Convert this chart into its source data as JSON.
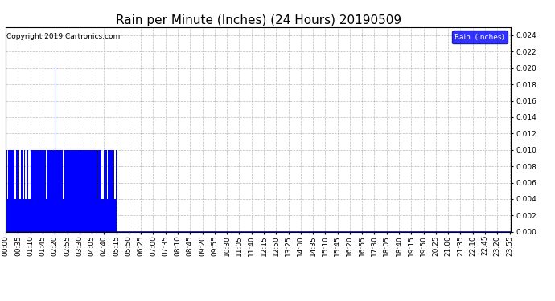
{
  "title": "Rain per Minute (Inches) (24 Hours) 20190509",
  "copyright": "Copyright 2019 Cartronics.com",
  "legend_label": "Rain  (Inches)",
  "legend_bg": "#0000FF",
  "legend_text_color": "#FFFFFF",
  "bar_color": "#0000FF",
  "line_color": "#0000BB",
  "background_color": "#FFFFFF",
  "grid_color": "#AAAAAA",
  "ylim": [
    0,
    0.025
  ],
  "yticks": [
    0.0,
    0.002,
    0.004,
    0.006,
    0.008,
    0.01,
    0.012,
    0.014,
    0.016,
    0.018,
    0.02,
    0.022,
    0.024
  ],
  "title_fontsize": 11,
  "tick_fontsize": 6.5,
  "total_minutes": 1440,
  "tick_interval_minutes": 35,
  "rain_data": [
    [
      0,
      0.01
    ],
    [
      1,
      0.01
    ],
    [
      2,
      0.01
    ],
    [
      3,
      0.01
    ],
    [
      4,
      0.01
    ],
    [
      5,
      0.004
    ],
    [
      6,
      0.01
    ],
    [
      7,
      0.004
    ],
    [
      8,
      0.01
    ],
    [
      9,
      0.004
    ],
    [
      10,
      0.01
    ],
    [
      11,
      0.004
    ],
    [
      12,
      0.01
    ],
    [
      13,
      0.01
    ],
    [
      14,
      0.01
    ],
    [
      15,
      0.01
    ],
    [
      16,
      0.01
    ],
    [
      17,
      0.01
    ],
    [
      18,
      0.01
    ],
    [
      19,
      0.01
    ],
    [
      20,
      0.004
    ],
    [
      21,
      0.01
    ],
    [
      22,
      0.004
    ],
    [
      23,
      0.01
    ],
    [
      24,
      0.01
    ],
    [
      25,
      0.01
    ],
    [
      26,
      0.004
    ],
    [
      27,
      0.01
    ],
    [
      28,
      0.004
    ],
    [
      29,
      0.01
    ],
    [
      30,
      0.01
    ],
    [
      31,
      0.01
    ],
    [
      32,
      0.01
    ],
    [
      33,
      0.01
    ],
    [
      34,
      0.01
    ],
    [
      35,
      0.004
    ],
    [
      36,
      0.01
    ],
    [
      37,
      0.004
    ],
    [
      38,
      0.01
    ],
    [
      39,
      0.01
    ],
    [
      40,
      0.004
    ],
    [
      41,
      0.01
    ],
    [
      42,
      0.004
    ],
    [
      43,
      0.01
    ],
    [
      44,
      0.01
    ],
    [
      45,
      0.01
    ],
    [
      46,
      0.01
    ],
    [
      47,
      0.01
    ],
    [
      48,
      0.01
    ],
    [
      49,
      0.004
    ],
    [
      50,
      0.01
    ],
    [
      51,
      0.004
    ],
    [
      52,
      0.01
    ],
    [
      53,
      0.01
    ],
    [
      54,
      0.01
    ],
    [
      55,
      0.004
    ],
    [
      56,
      0.004
    ],
    [
      57,
      0.004
    ],
    [
      58,
      0.004
    ],
    [
      59,
      0.004
    ],
    [
      60,
      0.01
    ],
    [
      61,
      0.01
    ],
    [
      62,
      0.01
    ],
    [
      63,
      0.01
    ],
    [
      64,
      0.01
    ],
    [
      65,
      0.004
    ],
    [
      66,
      0.01
    ],
    [
      67,
      0.004
    ],
    [
      68,
      0.01
    ],
    [
      69,
      0.01
    ],
    [
      70,
      0.004
    ],
    [
      71,
      0.01
    ],
    [
      72,
      0.01
    ],
    [
      73,
      0.01
    ],
    [
      74,
      0.01
    ],
    [
      75,
      0.01
    ],
    [
      76,
      0.01
    ],
    [
      77,
      0.01
    ],
    [
      78,
      0.01
    ],
    [
      79,
      0.01
    ],
    [
      80,
      0.01
    ],
    [
      81,
      0.01
    ],
    [
      82,
      0.01
    ],
    [
      83,
      0.01
    ],
    [
      84,
      0.01
    ],
    [
      85,
      0.01
    ],
    [
      86,
      0.01
    ],
    [
      87,
      0.01
    ],
    [
      88,
      0.01
    ],
    [
      89,
      0.01
    ],
    [
      90,
      0.01
    ],
    [
      91,
      0.01
    ],
    [
      92,
      0.01
    ],
    [
      93,
      0.01
    ],
    [
      94,
      0.01
    ],
    [
      95,
      0.01
    ],
    [
      96,
      0.01
    ],
    [
      97,
      0.01
    ],
    [
      98,
      0.01
    ],
    [
      99,
      0.01
    ],
    [
      100,
      0.01
    ],
    [
      101,
      0.01
    ],
    [
      102,
      0.01
    ],
    [
      103,
      0.01
    ],
    [
      104,
      0.01
    ],
    [
      105,
      0.01
    ],
    [
      106,
      0.01
    ],
    [
      107,
      0.01
    ],
    [
      108,
      0.01
    ],
    [
      109,
      0.01
    ],
    [
      110,
      0.004
    ],
    [
      111,
      0.01
    ],
    [
      112,
      0.004
    ],
    [
      113,
      0.01
    ],
    [
      114,
      0.01
    ],
    [
      115,
      0.004
    ],
    [
      116,
      0.01
    ],
    [
      117,
      0.004
    ],
    [
      118,
      0.01
    ],
    [
      119,
      0.01
    ],
    [
      120,
      0.01
    ],
    [
      121,
      0.01
    ],
    [
      122,
      0.01
    ],
    [
      123,
      0.01
    ],
    [
      124,
      0.01
    ],
    [
      125,
      0.01
    ],
    [
      126,
      0.01
    ],
    [
      127,
      0.01
    ],
    [
      128,
      0.01
    ],
    [
      129,
      0.01
    ],
    [
      130,
      0.01
    ],
    [
      131,
      0.01
    ],
    [
      132,
      0.01
    ],
    [
      133,
      0.01
    ],
    [
      134,
      0.01
    ],
    [
      135,
      0.01
    ],
    [
      136,
      0.01
    ],
    [
      137,
      0.01
    ],
    [
      138,
      0.01
    ],
    [
      139,
      0.01
    ],
    [
      140,
      0.01
    ],
    [
      141,
      0.02
    ],
    [
      142,
      0.01
    ],
    [
      143,
      0.01
    ],
    [
      144,
      0.01
    ],
    [
      145,
      0.01
    ],
    [
      146,
      0.01
    ],
    [
      147,
      0.01
    ],
    [
      148,
      0.01
    ],
    [
      149,
      0.01
    ],
    [
      150,
      0.01
    ],
    [
      151,
      0.01
    ],
    [
      152,
      0.01
    ],
    [
      153,
      0.01
    ],
    [
      154,
      0.01
    ],
    [
      155,
      0.01
    ],
    [
      156,
      0.01
    ],
    [
      157,
      0.01
    ],
    [
      158,
      0.004
    ],
    [
      159,
      0.01
    ],
    [
      160,
      0.01
    ],
    [
      161,
      0.01
    ],
    [
      162,
      0.01
    ],
    [
      163,
      0.01
    ],
    [
      164,
      0.004
    ],
    [
      165,
      0.01
    ],
    [
      166,
      0.004
    ],
    [
      167,
      0.01
    ],
    [
      168,
      0.01
    ],
    [
      169,
      0.004
    ],
    [
      170,
      0.01
    ],
    [
      171,
      0.004
    ],
    [
      172,
      0.01
    ],
    [
      173,
      0.01
    ],
    [
      174,
      0.004
    ],
    [
      175,
      0.01
    ],
    [
      176,
      0.004
    ],
    [
      177,
      0.01
    ],
    [
      178,
      0.01
    ],
    [
      179,
      0.004
    ],
    [
      180,
      0.01
    ],
    [
      181,
      0.01
    ],
    [
      182,
      0.01
    ],
    [
      183,
      0.01
    ],
    [
      184,
      0.01
    ],
    [
      185,
      0.01
    ],
    [
      186,
      0.01
    ],
    [
      187,
      0.01
    ],
    [
      188,
      0.01
    ],
    [
      189,
      0.01
    ],
    [
      190,
      0.004
    ],
    [
      191,
      0.01
    ],
    [
      192,
      0.004
    ],
    [
      193,
      0.01
    ],
    [
      194,
      0.01
    ],
    [
      195,
      0.01
    ],
    [
      196,
      0.01
    ],
    [
      197,
      0.01
    ],
    [
      198,
      0.01
    ],
    [
      199,
      0.01
    ],
    [
      200,
      0.01
    ],
    [
      201,
      0.01
    ],
    [
      202,
      0.01
    ],
    [
      203,
      0.01
    ],
    [
      204,
      0.01
    ],
    [
      205,
      0.01
    ],
    [
      206,
      0.01
    ],
    [
      207,
      0.01
    ],
    [
      208,
      0.004
    ],
    [
      209,
      0.01
    ],
    [
      210,
      0.004
    ],
    [
      211,
      0.01
    ],
    [
      212,
      0.01
    ],
    [
      213,
      0.01
    ],
    [
      214,
      0.01
    ],
    [
      215,
      0.01
    ],
    [
      216,
      0.01
    ],
    [
      217,
      0.01
    ],
    [
      218,
      0.004
    ],
    [
      219,
      0.01
    ],
    [
      220,
      0.01
    ],
    [
      221,
      0.01
    ],
    [
      222,
      0.01
    ],
    [
      223,
      0.01
    ],
    [
      224,
      0.01
    ],
    [
      225,
      0.01
    ],
    [
      226,
      0.01
    ],
    [
      227,
      0.01
    ],
    [
      228,
      0.01
    ],
    [
      229,
      0.01
    ],
    [
      230,
      0.01
    ],
    [
      231,
      0.01
    ],
    [
      232,
      0.01
    ],
    [
      233,
      0.01
    ],
    [
      234,
      0.01
    ],
    [
      235,
      0.01
    ],
    [
      236,
      0.01
    ],
    [
      237,
      0.01
    ],
    [
      238,
      0.01
    ],
    [
      239,
      0.01
    ],
    [
      240,
      0.01
    ],
    [
      241,
      0.01
    ],
    [
      242,
      0.01
    ],
    [
      243,
      0.01
    ],
    [
      244,
      0.01
    ],
    [
      245,
      0.01
    ],
    [
      246,
      0.01
    ],
    [
      247,
      0.01
    ],
    [
      248,
      0.01
    ],
    [
      249,
      0.01
    ],
    [
      250,
      0.01
    ],
    [
      251,
      0.01
    ],
    [
      252,
      0.01
    ],
    [
      253,
      0.01
    ],
    [
      254,
      0.004
    ],
    [
      255,
      0.01
    ],
    [
      256,
      0.004
    ],
    [
      257,
      0.01
    ],
    [
      258,
      0.01
    ],
    [
      259,
      0.01
    ],
    [
      260,
      0.004
    ],
    [
      261,
      0.01
    ],
    [
      262,
      0.01
    ],
    [
      263,
      0.004
    ],
    [
      264,
      0.01
    ],
    [
      265,
      0.01
    ],
    [
      266,
      0.004
    ],
    [
      267,
      0.01
    ],
    [
      268,
      0.01
    ],
    [
      269,
      0.01
    ],
    [
      270,
      0.01
    ],
    [
      271,
      0.01
    ],
    [
      272,
      0.01
    ],
    [
      273,
      0.004
    ],
    [
      274,
      0.01
    ],
    [
      275,
      0.01
    ],
    [
      276,
      0.004
    ],
    [
      277,
      0.004
    ],
    [
      278,
      0.004
    ],
    [
      279,
      0.004
    ],
    [
      280,
      0.01
    ],
    [
      281,
      0.01
    ],
    [
      282,
      0.01
    ],
    [
      283,
      0.01
    ],
    [
      284,
      0.01
    ],
    [
      285,
      0.01
    ],
    [
      286,
      0.01
    ],
    [
      287,
      0.01
    ],
    [
      288,
      0.004
    ],
    [
      289,
      0.01
    ],
    [
      290,
      0.004
    ],
    [
      291,
      0.01
    ],
    [
      292,
      0.01
    ],
    [
      293,
      0.01
    ],
    [
      294,
      0.01
    ],
    [
      295,
      0.01
    ],
    [
      296,
      0.01
    ],
    [
      297,
      0.004
    ],
    [
      298,
      0.01
    ],
    [
      299,
      0.01
    ],
    [
      300,
      0.01
    ],
    [
      301,
      0.01
    ],
    [
      302,
      0.01
    ],
    [
      303,
      0.01
    ],
    [
      304,
      0.004
    ],
    [
      305,
      0.01
    ],
    [
      306,
      0.004
    ],
    [
      307,
      0.01
    ],
    [
      308,
      0.01
    ],
    [
      309,
      0.01
    ],
    [
      310,
      0.004
    ],
    [
      311,
      0.01
    ],
    [
      312,
      0.004
    ],
    [
      313,
      0.01
    ],
    [
      314,
      0.004
    ],
    [
      315,
      0.01
    ]
  ]
}
